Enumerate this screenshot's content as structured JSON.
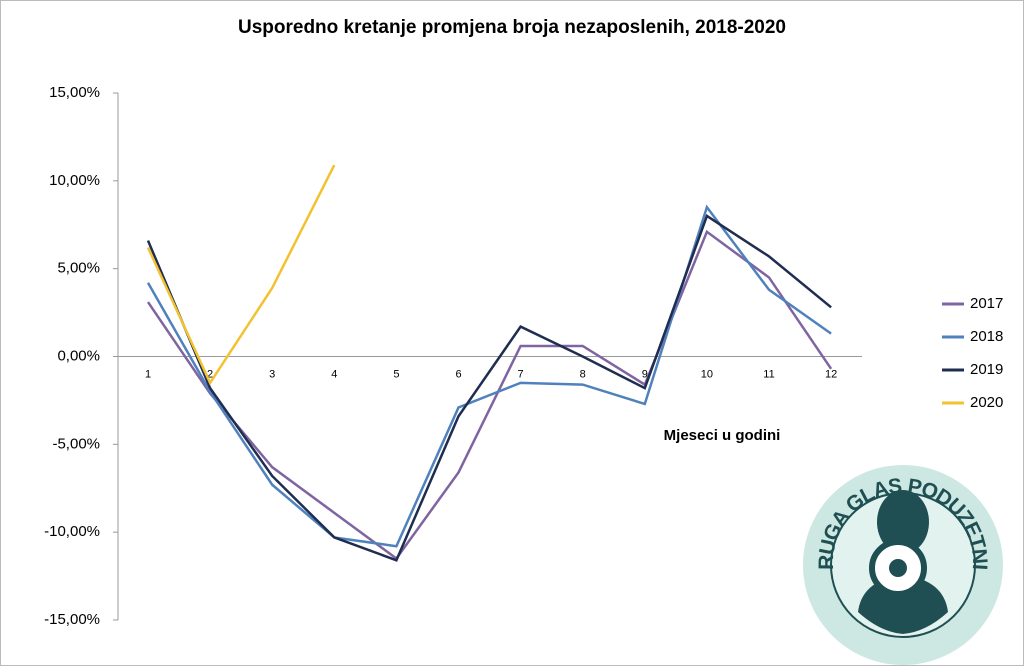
{
  "chart_data": {
    "type": "line",
    "title": "Usporedno kretanje promjena broja nezaposlenih, 2018-2020",
    "x_label": "Mjeseci u godini",
    "categories": [
      "1",
      "2",
      "3",
      "4",
      "5",
      "6",
      "7",
      "8",
      "9",
      "10",
      "11",
      "12"
    ],
    "series": [
      {
        "name": "2017",
        "color": "#8064a2",
        "values": [
          3.1,
          -2.1,
          -6.3,
          -8.9,
          -11.5,
          -6.6,
          0.6,
          0.6,
          -1.6,
          7.1,
          4.5,
          -0.7
        ]
      },
      {
        "name": "2018",
        "color": "#4f81bd",
        "values": [
          4.2,
          -2.0,
          -7.3,
          -10.3,
          -10.8,
          -2.9,
          -1.5,
          -1.6,
          -2.7,
          8.5,
          3.8,
          1.3
        ]
      },
      {
        "name": "2019",
        "color": "#1f2d50",
        "values": [
          6.6,
          -1.8,
          -6.8,
          -10.3,
          -11.6,
          -3.4,
          1.7,
          0.0,
          -1.8,
          8.0,
          5.7,
          2.8
        ]
      },
      {
        "name": "2020",
        "color": "#f2c230",
        "values": [
          6.2,
          -1.5,
          3.9,
          10.9,
          null,
          null,
          null,
          null,
          null,
          null,
          null,
          null
        ]
      }
    ],
    "ylim": [
      -15,
      15
    ],
    "yticks": [
      {
        "value": -15,
        "label": "-15,00%"
      },
      {
        "value": -10,
        "label": "-10,00%"
      },
      {
        "value": -5,
        "label": "-5,00%"
      },
      {
        "value": 0,
        "label": "0,00%"
      },
      {
        "value": 5,
        "label": "5,00%"
      },
      {
        "value": 10,
        "label": "10,00%"
      },
      {
        "value": 15,
        "label": "15,00%"
      }
    ],
    "grid": false,
    "legend": "right"
  },
  "logo": {
    "text": "UDRUGA GLAS PODUZETNIKA"
  }
}
